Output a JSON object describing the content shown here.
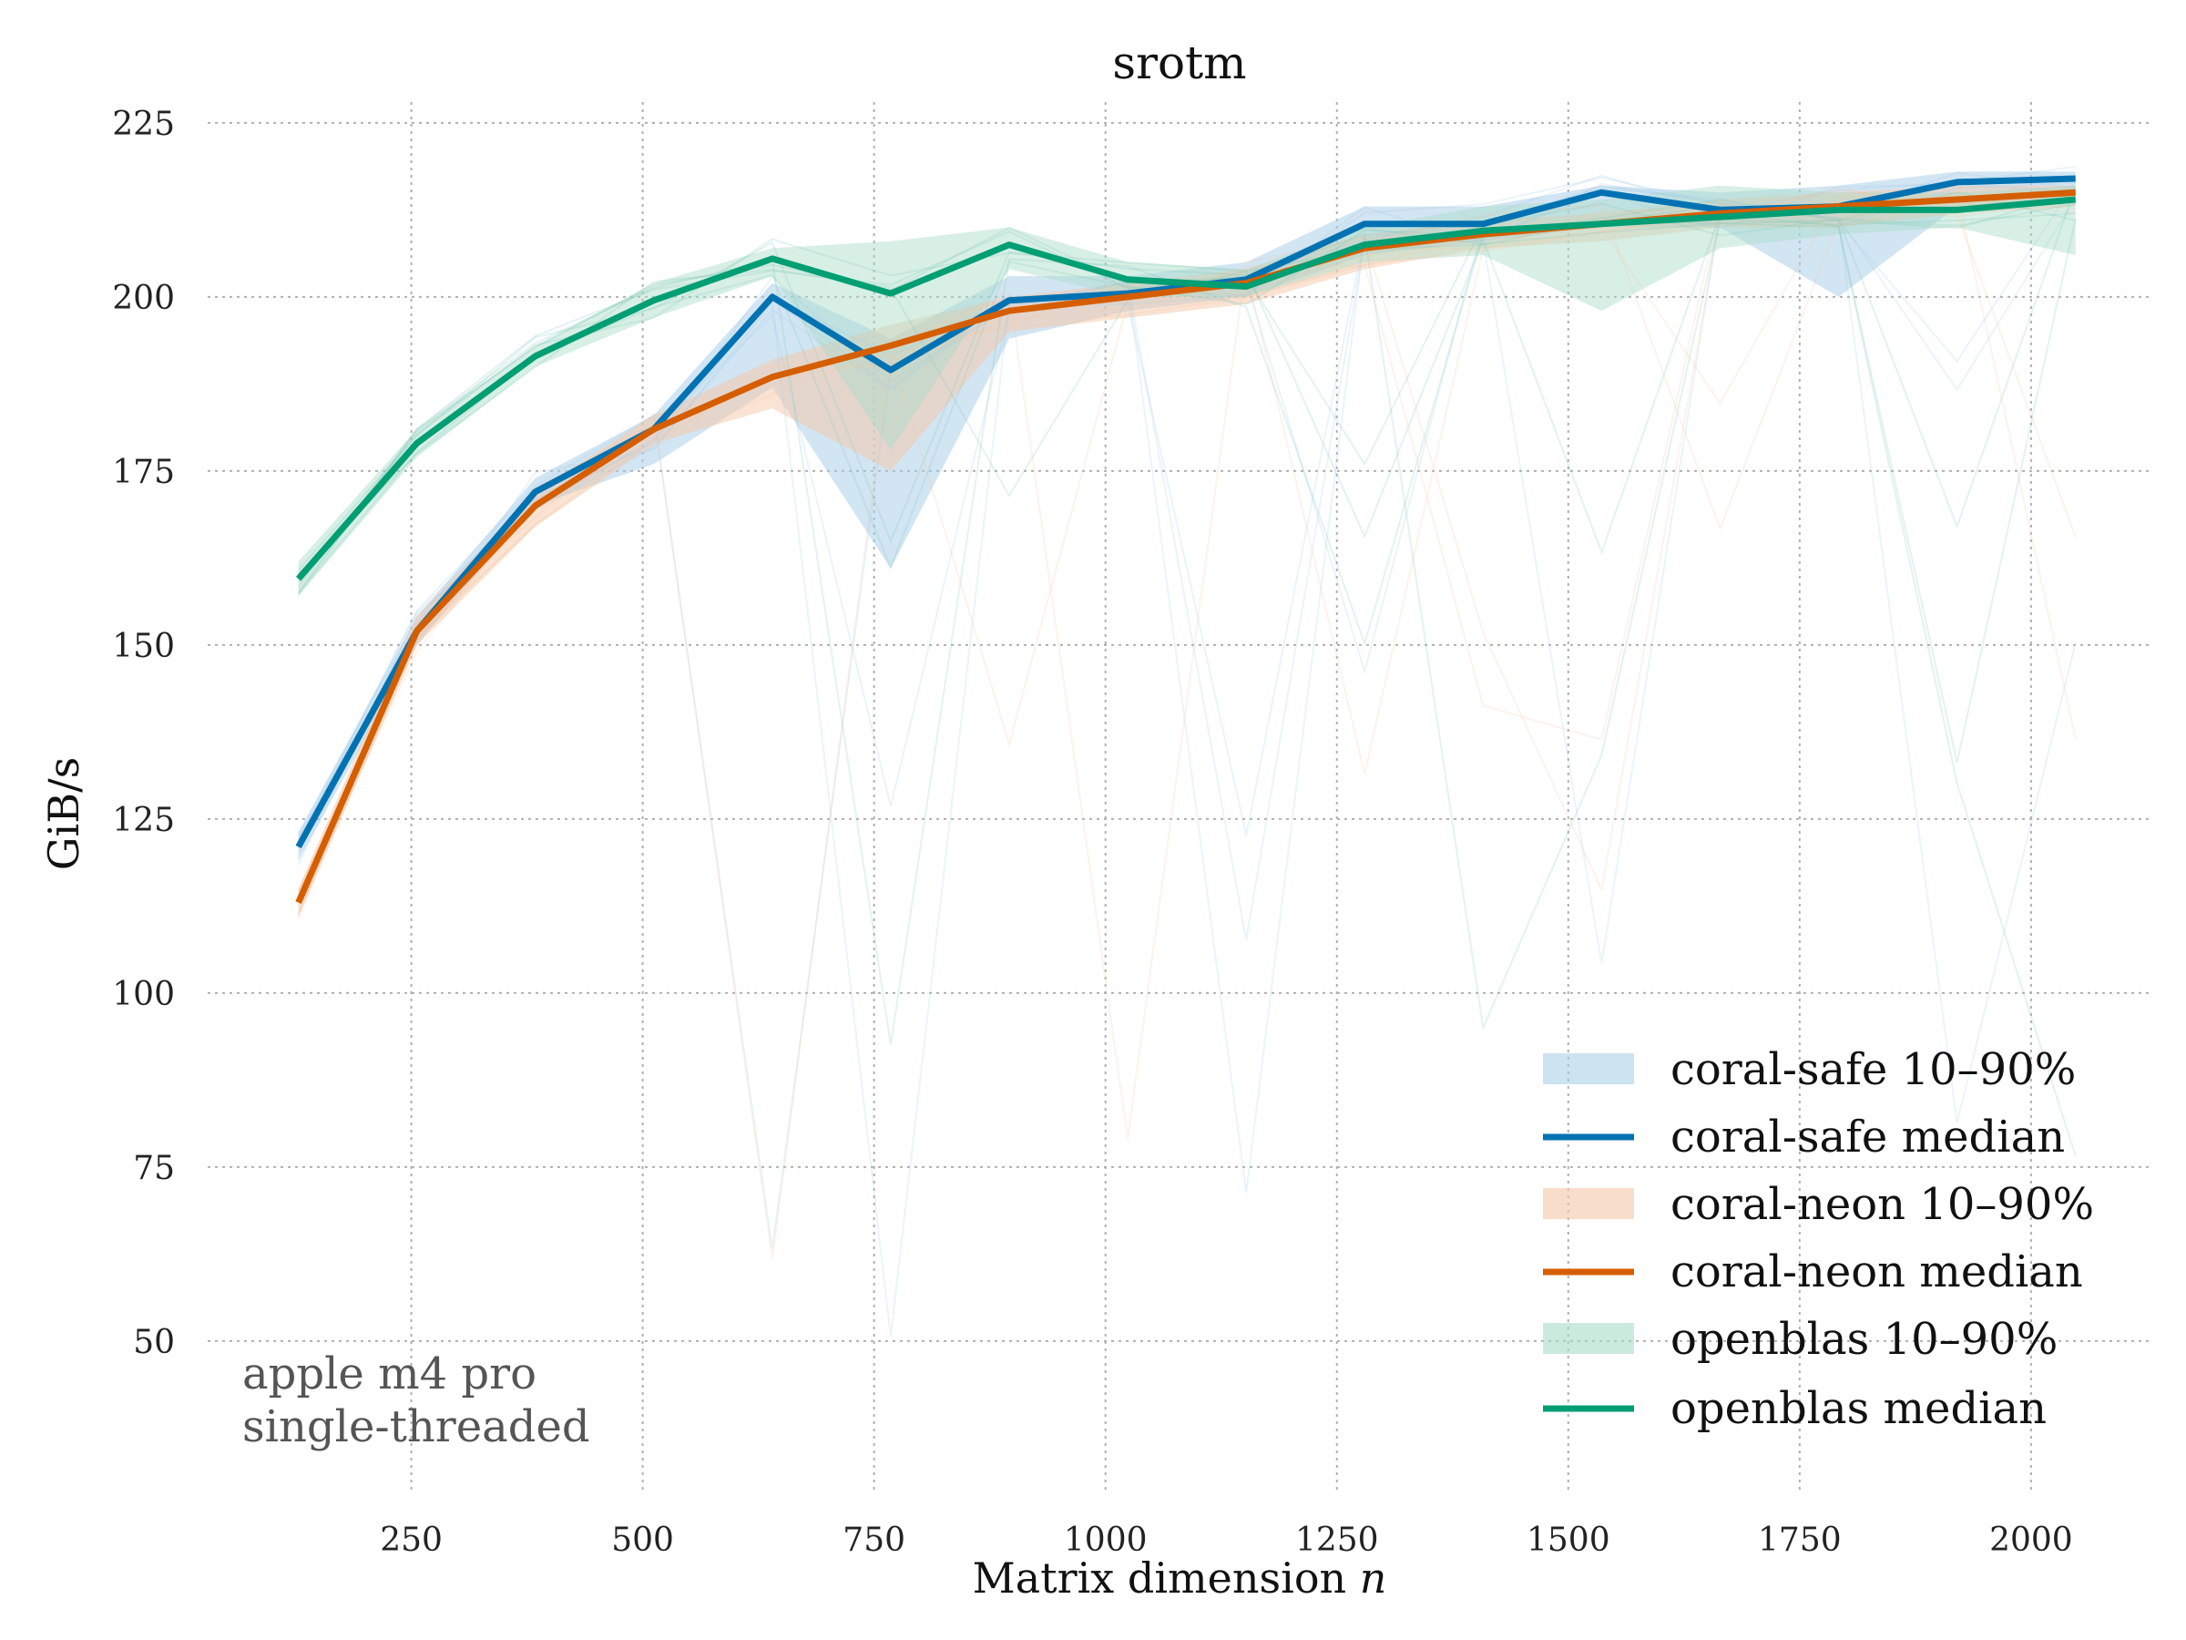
{
  "chart_data": {
    "type": "line",
    "title": "srotm",
    "xlabel": "Matrix dimension",
    "xlabel_var": "n",
    "ylabel": "GiB/s",
    "xlim": [
      30,
      2130
    ],
    "ylim": [
      28,
      228
    ],
    "grid": true,
    "legend_position": "bottom-right",
    "x_ticks": [
      250,
      500,
      750,
      1000,
      1250,
      1500,
      1750,
      2000
    ],
    "y_ticks": [
      50,
      75,
      100,
      125,
      150,
      175,
      200,
      225
    ],
    "x": [
      128,
      256,
      384,
      512,
      640,
      768,
      896,
      1024,
      1152,
      1280,
      1408,
      1536,
      1664,
      1792,
      1920,
      2048
    ],
    "series": [
      {
        "name": "coral-safe",
        "color": "#0072b2",
        "band_color": "#a6cce8",
        "median_label": "coral-safe median",
        "band_label": "coral-safe 10–90%",
        "median": [
          121,
          152,
          172,
          181,
          200,
          189.5,
          199.5,
          200.5,
          202.5,
          210.5,
          210.5,
          215,
          212.5,
          213,
          216.5,
          217
        ],
        "p10": [
          119,
          150,
          170,
          176,
          187,
          161,
          194,
          198,
          200,
          206,
          208,
          210,
          210,
          200,
          213,
          214
        ],
        "p90": [
          123,
          154,
          174,
          183,
          202,
          194,
          203,
          203,
          205,
          213,
          213,
          216,
          215,
          216,
          218,
          218
        ]
      },
      {
        "name": "coral-neon",
        "color": "#d55e00",
        "band_color": "#f5c7a8",
        "median_label": "coral-neon median",
        "band_label": "coral-neon 10–90%",
        "median": [
          113,
          152,
          170,
          181,
          188.5,
          193,
          198,
          200,
          202,
          207,
          209,
          210.5,
          212,
          213,
          214,
          215
        ],
        "p10": [
          111,
          150,
          167,
          179,
          184,
          175,
          195,
          197,
          199,
          204,
          207,
          208,
          210,
          210,
          212,
          213
        ],
        "p90": [
          115,
          154,
          172,
          183,
          191,
          196,
          200,
          202,
          204,
          209,
          211,
          212,
          214,
          215,
          216,
          216
        ]
      },
      {
        "name": "openblas",
        "color": "#009e73",
        "band_color": "#a8dcc8",
        "median_label": "openblas median",
        "band_label": "openblas 10–90%",
        "median": [
          159.5,
          179,
          191.5,
          199.5,
          205.5,
          200.5,
          207.5,
          202.5,
          201.5,
          207.5,
          209.5,
          210.5,
          211.5,
          212.5,
          212.5,
          214
        ],
        "p10": [
          157,
          177,
          190,
          197,
          203,
          178,
          204,
          200,
          200,
          205,
          206,
          198,
          207,
          209,
          210,
          206
        ],
        "p90": [
          162,
          181,
          193,
          202,
          207,
          208,
          210,
          205,
          204,
          210,
          213,
          214,
          216,
          215,
          215,
          216
        ]
      }
    ],
    "annotations": [
      "apple m4 pro",
      "single-threaded"
    ]
  }
}
